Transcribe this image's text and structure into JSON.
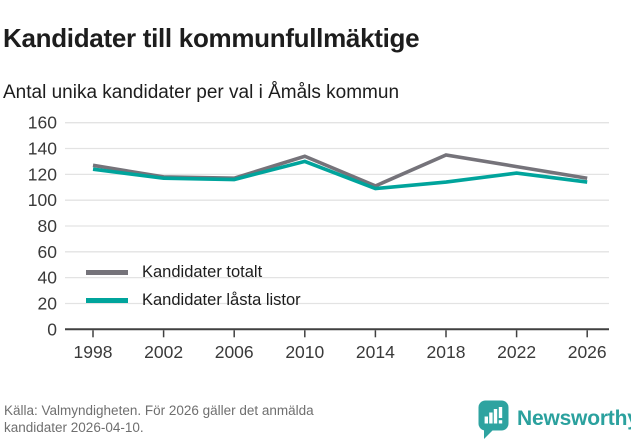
{
  "header": {
    "title": "Kandidater till kommunfullmäktige",
    "subtitle": "Antal unika kandidater per val i Åmåls kommun"
  },
  "chart_data": {
    "type": "line",
    "categories": [
      "1998",
      "2002",
      "2006",
      "2010",
      "2014",
      "2018",
      "2022",
      "2026"
    ],
    "series": [
      {
        "name": "Kandidater totalt",
        "color": "#75737a",
        "values": [
          127,
          118,
          117,
          134,
          111,
          135,
          126,
          117
        ]
      },
      {
        "name": "Kandidater låsta listor",
        "color": "#00a49c",
        "values": [
          124,
          117,
          116,
          130,
          109,
          114,
          121,
          114
        ]
      }
    ],
    "xlabel": "",
    "ylabel": "",
    "ylim": [
      0,
      160
    ],
    "ytick_step": 20,
    "grid": true,
    "legend_position": "inside bottom-left"
  },
  "footer": {
    "source_line1": "Källa: Valmyndigheten. För 2026 gäller det anmälda",
    "source_line2": "kandidater 2026-04-10.",
    "brand": "Newsworthy"
  },
  "colors": {
    "accent_teal": "#00a49c",
    "neutral_gray": "#75737a",
    "brand_teal": "#2ea3a0",
    "grid": "#e3e3e3",
    "axis": "#404040",
    "tick_text": "#3a3a3a",
    "text_dark": "#1d1d1d",
    "text_muted": "#6f6f6f"
  }
}
